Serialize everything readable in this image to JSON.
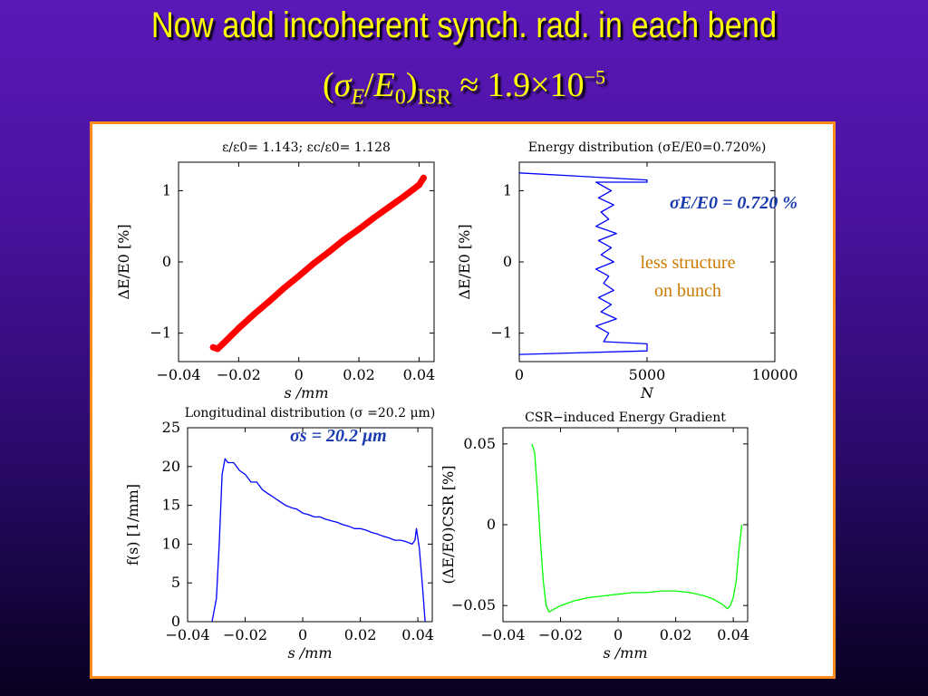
{
  "slide": {
    "title_line1": "Now add incoherent synch. rad. in each bend",
    "title_line2": {
      "open": "(",
      "sigma": "σ",
      "sub_E": "E",
      "slash": "/",
      "E": "E",
      "sub0": "0",
      "close": ")",
      "sub_isr": "ISR",
      "approx": " ≈ 1.9×10",
      "exp": "−5"
    }
  },
  "annotations": {
    "sigma_E_value": "σE/E0 = 0.720 %",
    "less_structure_1": "less structure",
    "less_structure_2": "on bunch",
    "sigma_s_value": "σs = 20.2 μm"
  },
  "colors": {
    "title": "#ffff00",
    "panel_border": "#ff8c1a",
    "red_series": "#ff0000",
    "blue_series": "#0000ff",
    "green_series": "#00ff00",
    "annotation_blue": "#1a3ab0",
    "annotation_orange": "#cc7a00"
  },
  "chart_data": [
    {
      "id": "phase_space",
      "type": "scatter",
      "title": "ε/ε0= 1.143; εc/ε0= 1.128",
      "xlabel": "s /mm",
      "ylabel": "ΔE/E0 [%]",
      "xlim": [
        -0.04,
        0.045
      ],
      "ylim": [
        -1.4,
        1.4
      ],
      "xticks": [
        -0.04,
        -0.02,
        0,
        0.02,
        0.04
      ],
      "xtick_labels": [
        "−0.04",
        "−0.02",
        "0",
        "0.02",
        "0.04"
      ],
      "yticks": [
        -1,
        0,
        1
      ],
      "ytick_labels": [
        "−1",
        "0",
        "1"
      ],
      "color": "#ff0000",
      "x": [
        -0.0285,
        -0.027,
        -0.025,
        -0.02,
        -0.015,
        -0.01,
        -0.005,
        0,
        0.005,
        0.01,
        0.015,
        0.02,
        0.025,
        0.03,
        0.035,
        0.04,
        0.0415
      ],
      "y": [
        -1.2,
        -1.22,
        -1.14,
        -0.93,
        -0.74,
        -0.56,
        -0.37,
        -0.2,
        -0.02,
        0.14,
        0.31,
        0.46,
        0.62,
        0.77,
        0.92,
        1.08,
        1.18
      ]
    },
    {
      "id": "energy_distribution",
      "type": "line",
      "title": "Energy distribution (σE/E0=0.720%)",
      "xlabel": "N",
      "ylabel": "ΔE/E0 [%]",
      "xlim": [
        0,
        10000
      ],
      "ylim": [
        -1.4,
        1.4
      ],
      "xticks": [
        0,
        5000,
        10000
      ],
      "xtick_labels": [
        "0",
        "5000",
        "10000"
      ],
      "yticks": [
        -1,
        0,
        1
      ],
      "ytick_labels": [
        "−1",
        "0",
        "1"
      ],
      "color": "#0000ff",
      "x": [
        0,
        5000,
        5000,
        3000,
        3600,
        3100,
        3700,
        3200,
        3500,
        3000,
        3800,
        3100,
        3600,
        3200,
        3700,
        3000,
        3500,
        3300,
        3700,
        3100,
        3600,
        3200,
        3800,
        3000,
        3500,
        3300,
        5000,
        5000,
        0
      ],
      "y": [
        1.25,
        1.15,
        1.12,
        1.12,
        1.0,
        0.9,
        0.8,
        0.7,
        0.6,
        0.5,
        0.4,
        0.3,
        0.2,
        0.1,
        0.0,
        -0.1,
        -0.2,
        -0.3,
        -0.4,
        -0.5,
        -0.6,
        -0.7,
        -0.8,
        -0.9,
        -1.0,
        -1.12,
        -1.15,
        -1.25,
        -1.3
      ]
    },
    {
      "id": "longitudinal_distribution",
      "type": "line",
      "title": "Longitudinal distribution (σ =20.2 μm)",
      "xlabel": "s /mm",
      "ylabel": "f(s) [1/mm]",
      "xlim": [
        -0.04,
        0.045
      ],
      "ylim": [
        0,
        25
      ],
      "xticks": [
        -0.04,
        -0.02,
        0,
        0.02,
        0.04
      ],
      "xtick_labels": [
        "−0.04",
        "−0.02",
        "0",
        "0.02",
        "0.04"
      ],
      "yticks": [
        0,
        5,
        10,
        15,
        20,
        25
      ],
      "ytick_labels": [
        "0",
        "5",
        "10",
        "15",
        "20",
        "25"
      ],
      "color": "#0000ff",
      "x": [
        -0.0315,
        -0.03,
        -0.029,
        -0.028,
        -0.027,
        -0.026,
        -0.024,
        -0.022,
        -0.02,
        -0.018,
        -0.016,
        -0.014,
        -0.012,
        -0.01,
        -0.008,
        -0.006,
        -0.004,
        -0.002,
        0,
        0.002,
        0.004,
        0.006,
        0.008,
        0.01,
        0.012,
        0.014,
        0.016,
        0.018,
        0.02,
        0.022,
        0.024,
        0.026,
        0.028,
        0.03,
        0.032,
        0.034,
        0.036,
        0.038,
        0.039,
        0.0395,
        0.0405,
        0.0415,
        0.0425
      ],
      "y": [
        0,
        3,
        10,
        19,
        21,
        20.5,
        20.5,
        19.5,
        19,
        18,
        18,
        17,
        16.5,
        16,
        15.5,
        15,
        14.7,
        14.5,
        14,
        13.8,
        13.5,
        13.5,
        13.2,
        13,
        12.8,
        12.5,
        12.3,
        12,
        12,
        11.8,
        11.5,
        11.3,
        11,
        10.8,
        10.5,
        10.5,
        10.3,
        10,
        10.5,
        12,
        9.5,
        5,
        0
      ]
    },
    {
      "id": "csr_gradient",
      "type": "line",
      "title": "CSR−induced Energy Gradient",
      "xlabel": "s /mm",
      "ylabel": "(ΔE/E0)CSR [%]",
      "xlim": [
        -0.04,
        0.045
      ],
      "ylim": [
        -0.06,
        0.06
      ],
      "xticks": [
        -0.04,
        -0.02,
        0,
        0.02,
        0.04
      ],
      "xtick_labels": [
        "−0.04",
        "−0.02",
        "0",
        "0.02",
        "0.04"
      ],
      "yticks": [
        -0.05,
        0,
        0.05
      ],
      "ytick_labels": [
        "−0.05",
        "0",
        "0.05"
      ],
      "color": "#00ff00",
      "x": [
        -0.03,
        -0.029,
        -0.028,
        -0.027,
        -0.026,
        -0.025,
        -0.024,
        -0.022,
        -0.02,
        -0.015,
        -0.01,
        -0.005,
        0,
        0.005,
        0.01,
        0.015,
        0.02,
        0.025,
        0.03,
        0.033,
        0.036,
        0.038,
        0.039,
        0.04,
        0.041,
        0.042,
        0.043
      ],
      "y": [
        0.05,
        0.045,
        0.02,
        -0.01,
        -0.035,
        -0.05,
        -0.054,
        -0.052,
        -0.05,
        -0.047,
        -0.045,
        -0.044,
        -0.043,
        -0.042,
        -0.042,
        -0.041,
        -0.041,
        -0.042,
        -0.044,
        -0.046,
        -0.049,
        -0.052,
        -0.05,
        -0.045,
        -0.035,
        -0.015,
        0
      ]
    }
  ]
}
